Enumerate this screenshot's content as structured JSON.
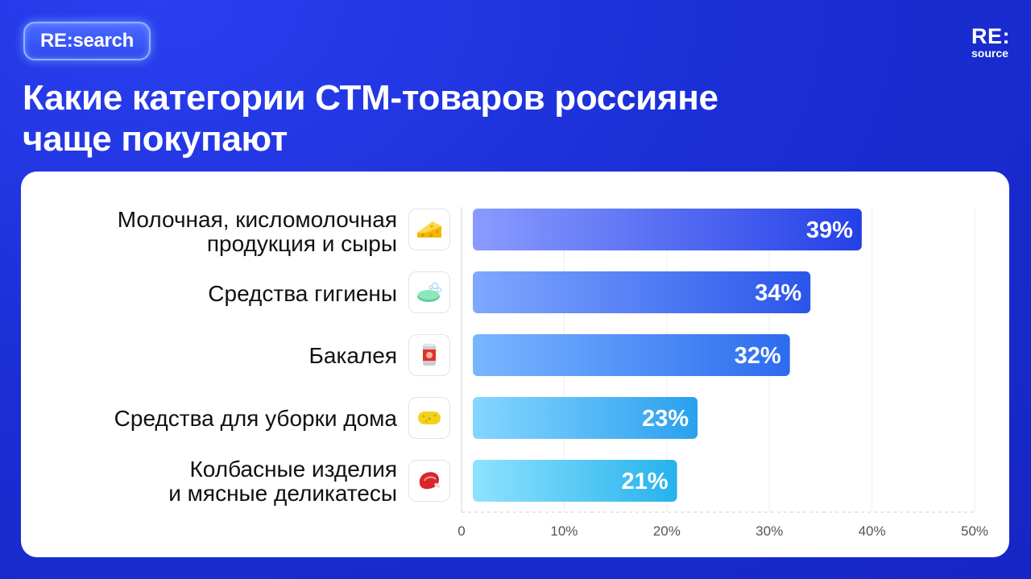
{
  "header": {
    "badge": "RE:search",
    "logo_line1": "RE:",
    "logo_line2": "source",
    "title_line1": "Какие категории СТМ-товаров россияне",
    "title_line2": "чаще покупают"
  },
  "chart_data": {
    "type": "bar",
    "orientation": "horizontal",
    "title": "Какие категории СТМ-товаров россияне чаще покупают",
    "categories": [
      [
        "Молочная, кисломолочная",
        "продукция и сыры"
      ],
      [
        "Средства гигиены"
      ],
      [
        "Бакалея"
      ],
      [
        "Средства для уборки дома"
      ],
      [
        "Колбасные изделия",
        "и мясные деликатесы"
      ]
    ],
    "icons": [
      "cheese-icon",
      "soap-icon",
      "canned-food-icon",
      "sponge-icon",
      "meat-icon"
    ],
    "values": [
      39,
      34,
      32,
      23,
      21
    ],
    "value_labels": [
      "39%",
      "34%",
      "32%",
      "23%",
      "21%"
    ],
    "xlim": [
      0,
      50
    ],
    "ticks": [
      "0",
      "10%",
      "20%",
      "30%",
      "40%",
      "50%"
    ],
    "grid": true,
    "bar_colors": [
      [
        "#8a9bff",
        "#2440e6"
      ],
      [
        "#7fa8ff",
        "#2a55ea"
      ],
      [
        "#78b6ff",
        "#2c6cee"
      ],
      [
        "#86d6ff",
        "#2aa0ee"
      ],
      [
        "#8fe2ff",
        "#26b2ec"
      ]
    ]
  }
}
